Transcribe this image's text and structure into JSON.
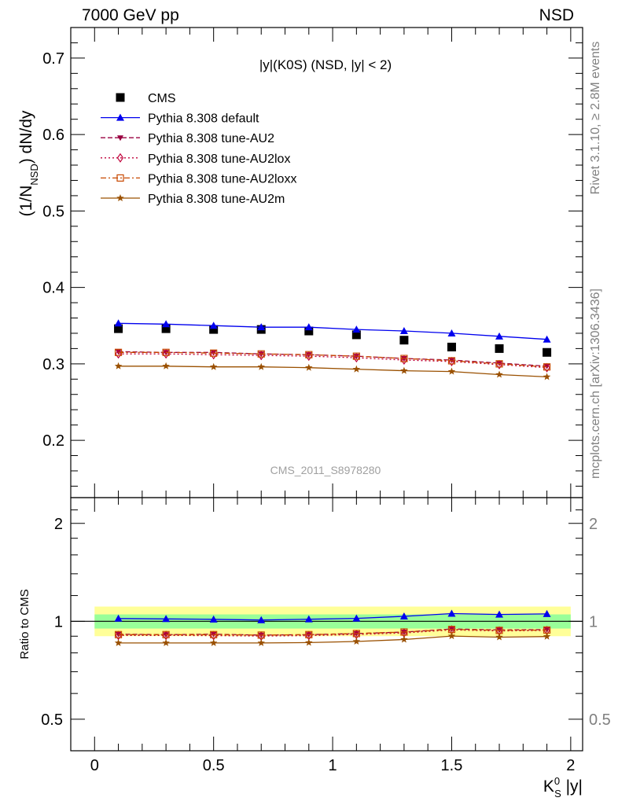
{
  "header": {
    "energy_label": "7000 GeV pp",
    "process_label": "NSD"
  },
  "side_labels": {
    "rivet": "Rivet 3.1.10, ≥ 2.8M events",
    "mcplots": "mcplots.cern.ch [arXiv:1306.3436]"
  },
  "watermark": "CMS_2011_S8978280",
  "chart_data": [
    {
      "type": "scatter",
      "title": "|y|(K0S) (NSD, |y| < 2)",
      "ylabel": "(1/N_NSD) dN/dy",
      "xlim": [
        -0.1,
        2.05
      ],
      "ylim": [
        0.125,
        0.74
      ],
      "y_ticks": [
        0.2,
        0.3,
        0.4,
        0.5,
        0.6,
        0.7
      ],
      "y_tick_labels": [
        "0.2",
        "0.3",
        "0.4",
        "0.5",
        "0.6",
        "0.7"
      ],
      "x": [
        0.1,
        0.3,
        0.5,
        0.7,
        0.9,
        1.1,
        1.3,
        1.5,
        1.7,
        1.9
      ],
      "legend_location": "top-left",
      "series": [
        {
          "name": "CMS",
          "color": "#000000",
          "marker": "square",
          "line": "none",
          "values": [
            0.346,
            0.346,
            0.345,
            0.345,
            0.343,
            0.338,
            0.331,
            0.322,
            0.32,
            0.315
          ]
        },
        {
          "name": "Pythia 8.308 default",
          "color": "#0000ee",
          "marker": "triangle-up",
          "line": "solid",
          "values": [
            0.353,
            0.352,
            0.35,
            0.348,
            0.348,
            0.345,
            0.343,
            0.34,
            0.336,
            0.332
          ]
        },
        {
          "name": "Pythia 8.308 tune-AU2",
          "color": "#9a0040",
          "marker": "triangle-down",
          "line": "dashed",
          "values": [
            0.316,
            0.315,
            0.315,
            0.313,
            0.312,
            0.31,
            0.307,
            0.305,
            0.301,
            0.297
          ]
        },
        {
          "name": "Pythia 8.308 tune-AU2lox",
          "color": "#c0003a",
          "marker": "diamond-open",
          "line": "dotted",
          "values": [
            0.313,
            0.313,
            0.312,
            0.311,
            0.31,
            0.308,
            0.305,
            0.303,
            0.299,
            0.295
          ]
        },
        {
          "name": "Pythia 8.308 tune-AU2loxx",
          "color": "#c84800",
          "marker": "square-open",
          "line": "dashdot",
          "values": [
            0.315,
            0.315,
            0.314,
            0.313,
            0.312,
            0.31,
            0.307,
            0.304,
            0.3,
            0.296
          ]
        },
        {
          "name": "Pythia 8.308 tune-AU2m",
          "color": "#9a5000",
          "marker": "star",
          "line": "solid",
          "values": [
            0.297,
            0.297,
            0.296,
            0.296,
            0.295,
            0.293,
            0.291,
            0.29,
            0.286,
            0.283
          ]
        }
      ]
    },
    {
      "type": "line",
      "ylabel": "Ratio to CMS",
      "xlabel": "K_S^0 |y|",
      "xlim": [
        -0.1,
        2.05
      ],
      "ylim": [
        0.4,
        2.4
      ],
      "log_y": true,
      "x_ticks": [
        0,
        0.5,
        1,
        1.5,
        2
      ],
      "x_tick_labels": [
        "0",
        "0.5",
        "1",
        "1.5",
        "2"
      ],
      "y_ticks": [
        0.5,
        1,
        2
      ],
      "y_tick_labels": [
        "0.5",
        "1",
        "2"
      ],
      "x": [
        0.1,
        0.3,
        0.5,
        0.7,
        0.9,
        1.1,
        1.3,
        1.5,
        1.7,
        1.9
      ],
      "uncertainty_bands": [
        {
          "color": "#ffff99",
          "low": 0.9,
          "high": 1.11
        },
        {
          "color": "#99ff99",
          "low": 0.95,
          "high": 1.05
        }
      ],
      "series": [
        {
          "name": "Pythia 8.308 default",
          "color": "#0000ee",
          "marker": "triangle-up",
          "line": "solid",
          "values": [
            1.02,
            1.017,
            1.014,
            1.009,
            1.015,
            1.021,
            1.036,
            1.056,
            1.05,
            1.054
          ]
        },
        {
          "name": "Pythia 8.308 tune-AU2",
          "color": "#9a0040",
          "marker": "triangle-down",
          "line": "dashed",
          "values": [
            0.913,
            0.91,
            0.913,
            0.907,
            0.91,
            0.917,
            0.927,
            0.947,
            0.941,
            0.943
          ]
        },
        {
          "name": "Pythia 8.308 tune-AU2lox",
          "color": "#c0003a",
          "marker": "diamond-open",
          "line": "dotted",
          "values": [
            0.905,
            0.905,
            0.904,
            0.901,
            0.904,
            0.911,
            0.921,
            0.941,
            0.934,
            0.937
          ]
        },
        {
          "name": "Pythia 8.308 tune-AU2loxx",
          "color": "#c84800",
          "marker": "square-open",
          "line": "dashdot",
          "values": [
            0.91,
            0.91,
            0.91,
            0.907,
            0.91,
            0.917,
            0.927,
            0.944,
            0.938,
            0.94
          ]
        },
        {
          "name": "Pythia 8.308 tune-AU2m",
          "color": "#9a5000",
          "marker": "star",
          "line": "solid",
          "values": [
            0.858,
            0.858,
            0.858,
            0.858,
            0.86,
            0.867,
            0.879,
            0.901,
            0.894,
            0.898
          ]
        }
      ]
    }
  ]
}
